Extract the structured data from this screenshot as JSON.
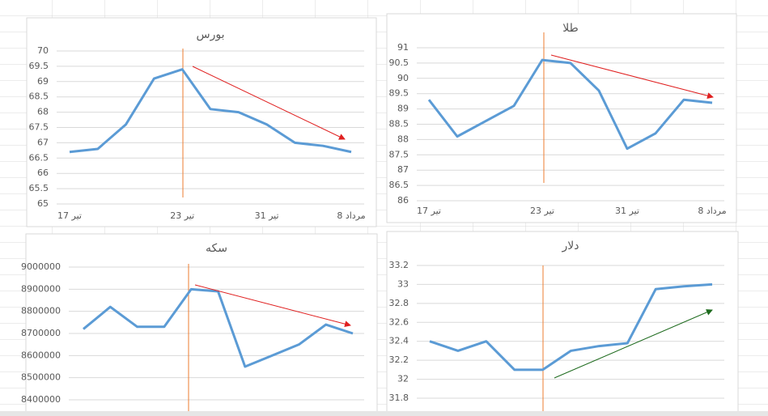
{
  "chart_data": [
    {
      "type": "line",
      "title": "بورس",
      "categories": [
        "17 تیر",
        null,
        null,
        null,
        "23 تیر",
        null,
        null,
        "31 تیر",
        null,
        null,
        "8 مرداد"
      ],
      "series": [
        {
          "name": "بورس",
          "color": "#5b9bd5",
          "values": [
            66.7,
            66.8,
            67.6,
            69.1,
            69.4,
            68.1,
            68.0,
            67.6,
            67.0,
            66.9,
            66.7
          ]
        }
      ],
      "ylim": [
        65,
        70
      ],
      "yticks": [
        65,
        65.5,
        66,
        66.5,
        67,
        67.5,
        68,
        68.5,
        69,
        69.5,
        70
      ],
      "grid": true
    },
    {
      "type": "line",
      "title": "طلا",
      "categories": [
        "17 تیر",
        null,
        null,
        null,
        "23 تیر",
        null,
        null,
        "31 تیر",
        null,
        null,
        "8 مرداد"
      ],
      "series": [
        {
          "name": "طلا",
          "color": "#5b9bd5",
          "values": [
            89.3,
            88.1,
            88.6,
            89.1,
            90.6,
            90.5,
            89.6,
            87.7,
            88.2,
            89.3,
            89.2
          ]
        }
      ],
      "ylim": [
        86,
        91
      ],
      "yticks": [
        86,
        86.5,
        87,
        87.5,
        88,
        88.5,
        89,
        89.5,
        90,
        90.5,
        91
      ],
      "grid": true
    },
    {
      "type": "line",
      "title": "سکه",
      "series": [
        {
          "name": "سکه",
          "color": "#5b9bd5",
          "values": [
            8720000,
            8820000,
            8730000,
            8730000,
            8900000,
            8890000,
            8550000,
            8600000,
            8650000,
            8740000,
            8700000
          ]
        }
      ],
      "ylim": [
        8400000,
        9000000
      ],
      "yticks": [
        8400000,
        8500000,
        8600000,
        8700000,
        8800000,
        8900000,
        9000000
      ],
      "grid": true
    },
    {
      "type": "line",
      "title": "دلار",
      "series": [
        {
          "name": "دلار",
          "color": "#5b9bd5",
          "values": [
            32.4,
            32.3,
            32.4,
            32.1,
            32.1,
            32.3,
            32.35,
            32.38,
            32.95,
            32.98,
            33.0
          ]
        }
      ],
      "ylim": [
        31.8,
        33.2
      ],
      "yticks": [
        31.8,
        32,
        32.2,
        32.4,
        32.6,
        32.8,
        33,
        33.2
      ],
      "grid": true
    }
  ]
}
